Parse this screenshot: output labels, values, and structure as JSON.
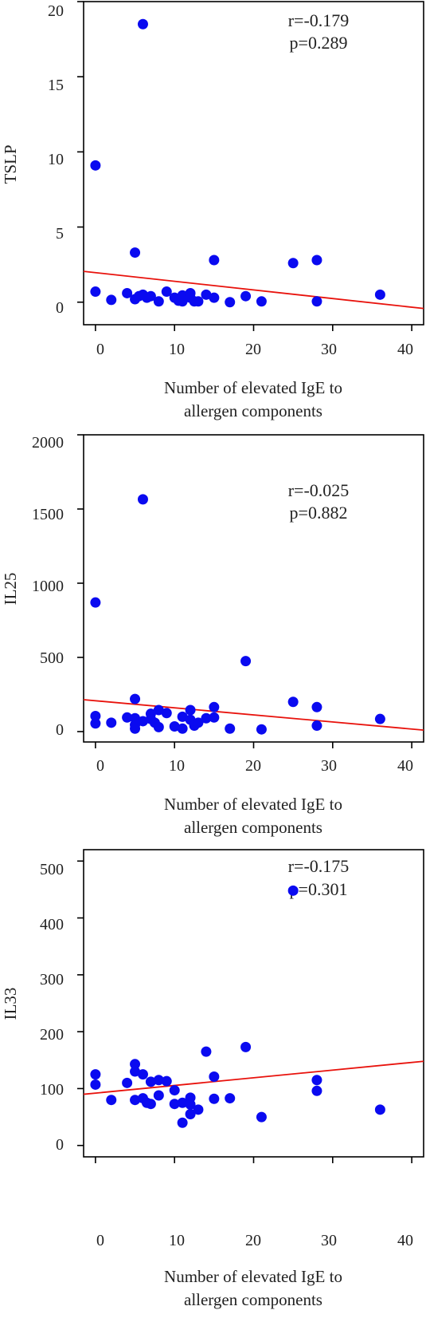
{
  "figure": {
    "panels": [
      {
        "ylabel": "TSLP",
        "xlabel_lines": [
          "Number of elevated IgE to",
          "allergen components"
        ],
        "r_text": "r=-0.179",
        "p_text": "p=0.289",
        "x_ticks": [
          "0",
          "10",
          "20",
          "30",
          "40"
        ],
        "y_ticks": [
          "0",
          "5",
          "10",
          "15",
          "20"
        ]
      },
      {
        "ylabel": "IL25",
        "xlabel_lines": [
          "Number of elevated IgE to",
          "allergen components"
        ],
        "r_text": "r=-0.025",
        "p_text": "p=0.882",
        "x_ticks": [
          "0",
          "10",
          "20",
          "30",
          "40"
        ],
        "y_ticks": [
          "0",
          "500",
          "1000",
          "1500",
          "2000"
        ]
      },
      {
        "ylabel": "IL33",
        "xlabel_lines": [
          "Number of elevated IgE to",
          "allergen components"
        ],
        "r_text": "r=-0.175",
        "p_text": "p=0.301",
        "x_ticks": [
          "0",
          "10",
          "20",
          "30",
          "40"
        ],
        "y_ticks": [
          "0",
          "100",
          "200",
          "300",
          "400",
          "500"
        ]
      }
    ]
  },
  "chart_data": [
    {
      "type": "scatter",
      "title": "",
      "xlabel": "Number of elevated IgE to allergen components",
      "ylabel": "TSLP",
      "xlim": [
        -1.5,
        41.5
      ],
      "ylim": [
        -1.5,
        20
      ],
      "x_ticks": [
        0,
        10,
        20,
        30,
        40
      ],
      "y_ticks": [
        0,
        5,
        10,
        15,
        20
      ],
      "grid": false,
      "point_color": "#0a0af0",
      "line_color": "#e8120c",
      "points": [
        [
          0,
          9.1
        ],
        [
          0,
          0.7
        ],
        [
          2,
          0.15
        ],
        [
          4,
          0.6
        ],
        [
          5,
          3.3
        ],
        [
          5,
          0.2
        ],
        [
          5.5,
          0.4
        ],
        [
          6,
          18.5
        ],
        [
          6,
          0.5
        ],
        [
          6.5,
          0.3
        ],
        [
          7,
          0.4
        ],
        [
          8,
          0.05
        ],
        [
          9,
          0.7
        ],
        [
          10,
          0.3
        ],
        [
          10.5,
          0.1
        ],
        [
          11,
          0.05
        ],
        [
          11,
          0.45
        ],
        [
          12,
          0.6
        ],
        [
          12,
          0.3
        ],
        [
          12.5,
          0.05
        ],
        [
          13,
          0.05
        ],
        [
          14,
          0.5
        ],
        [
          15,
          2.8
        ],
        [
          15,
          0.3
        ],
        [
          17,
          0.0
        ],
        [
          19,
          0.4
        ],
        [
          21,
          0.05
        ],
        [
          25,
          2.6
        ],
        [
          28,
          2.8
        ],
        [
          28,
          0.05
        ],
        [
          36,
          0.5
        ]
      ],
      "trend_line": {
        "x": [
          -1.5,
          41.5
        ],
        "y": [
          2.05,
          -0.42
        ]
      },
      "annotations": [
        "r=-0.179",
        "p=0.289"
      ]
    },
    {
      "type": "scatter",
      "title": "",
      "xlabel": "Number of elevated IgE to allergen components",
      "ylabel": "IL25",
      "xlim": [
        -1.5,
        41.5
      ],
      "ylim": [
        -70,
        2000
      ],
      "x_ticks": [
        0,
        10,
        20,
        30,
        40
      ],
      "y_ticks": [
        0,
        500,
        1000,
        1500,
        2000
      ],
      "grid": false,
      "point_color": "#0a0af0",
      "line_color": "#e8120c",
      "points": [
        [
          0,
          870
        ],
        [
          0,
          105
        ],
        [
          0,
          55
        ],
        [
          2,
          60
        ],
        [
          4,
          95
        ],
        [
          5,
          220
        ],
        [
          5,
          90
        ],
        [
          5,
          45
        ],
        [
          5,
          20
        ],
        [
          6,
          1565
        ],
        [
          6,
          70
        ],
        [
          7,
          120
        ],
        [
          7,
          85
        ],
        [
          7.5,
          60
        ],
        [
          8,
          145
        ],
        [
          8,
          30
        ],
        [
          9,
          125
        ],
        [
          10,
          35
        ],
        [
          11,
          100
        ],
        [
          11,
          20
        ],
        [
          12,
          145
        ],
        [
          12,
          80
        ],
        [
          12.5,
          40
        ],
        [
          13,
          60
        ],
        [
          14,
          90
        ],
        [
          15,
          165
        ],
        [
          15,
          95
        ],
        [
          17,
          20
        ],
        [
          19,
          475
        ],
        [
          21,
          15
        ],
        [
          25,
          200
        ],
        [
          28,
          165
        ],
        [
          28,
          40
        ],
        [
          36,
          85
        ]
      ],
      "trend_line": {
        "x": [
          -1.5,
          41.5
        ],
        "y": [
          215,
          10
        ]
      },
      "annotations": [
        "r=-0.025",
        "p=0.882"
      ]
    },
    {
      "type": "scatter",
      "title": "",
      "xlabel": "Number of elevated IgE to allergen components",
      "ylabel": "IL33",
      "xlim": [
        -1.5,
        41.5
      ],
      "ylim": [
        -20,
        520
      ],
      "x_ticks": [
        0,
        10,
        20,
        30,
        40
      ],
      "y_ticks": [
        0,
        100,
        200,
        300,
        400,
        500
      ],
      "grid": false,
      "point_color": "#0a0af0",
      "line_color": "#e8120c",
      "points": [
        [
          0,
          125
        ],
        [
          0,
          107
        ],
        [
          2,
          80
        ],
        [
          4,
          110
        ],
        [
          5,
          143
        ],
        [
          5,
          130
        ],
        [
          5,
          80
        ],
        [
          6,
          125
        ],
        [
          6,
          83
        ],
        [
          6.5,
          75
        ],
        [
          7,
          73
        ],
        [
          7,
          112
        ],
        [
          8,
          115
        ],
        [
          8,
          88
        ],
        [
          9,
          113
        ],
        [
          10,
          97
        ],
        [
          10,
          73
        ],
        [
          11,
          75
        ],
        [
          11,
          40
        ],
        [
          12,
          84
        ],
        [
          12,
          55
        ],
        [
          12,
          72
        ],
        [
          13,
          63
        ],
        [
          14,
          165
        ],
        [
          15,
          121
        ],
        [
          15,
          82
        ],
        [
          17,
          83
        ],
        [
          19,
          173
        ],
        [
          21,
          50
        ],
        [
          25,
          448
        ],
        [
          28,
          115
        ],
        [
          28,
          96
        ],
        [
          36,
          63
        ]
      ],
      "trend_line": {
        "x": [
          -1.5,
          41.5
        ],
        "y": [
          90,
          148
        ]
      },
      "annotations": [
        "r=-0.175",
        "p=0.301"
      ]
    }
  ]
}
